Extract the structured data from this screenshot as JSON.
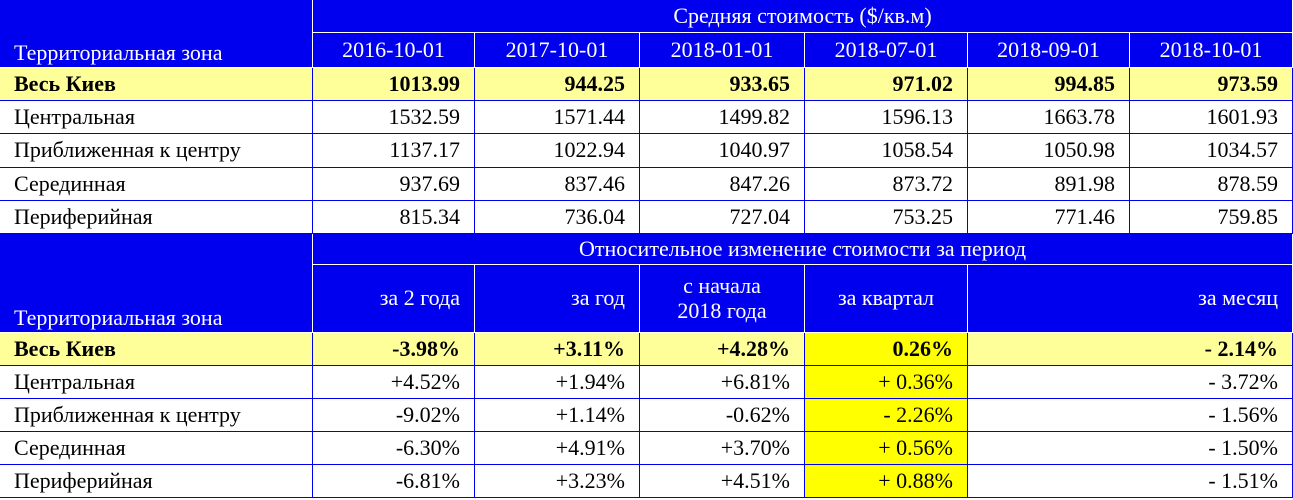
{
  "price_table": {
    "title": "Средняя стоимость ($/кв.м)",
    "zone_header": "Территориальная зона",
    "dates": [
      "2016-10-01",
      "2017-10-01",
      "2018-01-01",
      "2018-07-01",
      "2018-09-01",
      "2018-10-01"
    ],
    "rows": [
      {
        "zone": "Весь Киев",
        "values": [
          1013.99,
          944.25,
          933.65,
          971.02,
          994.85,
          973.59
        ]
      },
      {
        "zone": "Центральная",
        "values": [
          1532.59,
          1571.44,
          1499.82,
          1596.13,
          1663.78,
          1601.93
        ]
      },
      {
        "zone": "Приближенная к центру",
        "values": [
          1137.17,
          1022.94,
          1040.97,
          1058.54,
          1050.98,
          1034.57
        ]
      },
      {
        "zone": "Серединная",
        "values": [
          937.69,
          837.46,
          847.26,
          873.72,
          891.98,
          878.59
        ]
      },
      {
        "zone": "Периферийная",
        "values": [
          815.34,
          736.04,
          727.04,
          753.25,
          771.46,
          759.85
        ]
      }
    ]
  },
  "change_table": {
    "title": "Относительное изменение стоимости за период",
    "zone_header": "Территориальная зона",
    "periods": [
      "за 2 года",
      "за год",
      "с начала\n2018 года",
      "за квартал",
      "за месяц"
    ],
    "rows": [
      {
        "zone": "Весь Киев",
        "values": [
          "-3.98%",
          "+3.11%",
          "+4.28%",
          "0.26%",
          "- 2.14%"
        ]
      },
      {
        "zone": "Центральная",
        "values": [
          "+4.52%",
          "+1.94%",
          "+6.81%",
          "+ 0.36%",
          "- 3.72%"
        ]
      },
      {
        "zone": "Приближенная к центру",
        "values": [
          "-9.02%",
          "+1.14%",
          "-0.62%",
          "- 2.26%",
          "- 1.56%"
        ]
      },
      {
        "zone": "Серединная",
        "values": [
          "-6.30%",
          "+4.91%",
          "+3.70%",
          "+ 0.56%",
          "- 1.50%"
        ]
      },
      {
        "zone": "Периферийная",
        "values": [
          "-6.81%",
          "+3.23%",
          "+4.51%",
          "+ 0.88%",
          "- 1.51%"
        ]
      }
    ]
  }
}
